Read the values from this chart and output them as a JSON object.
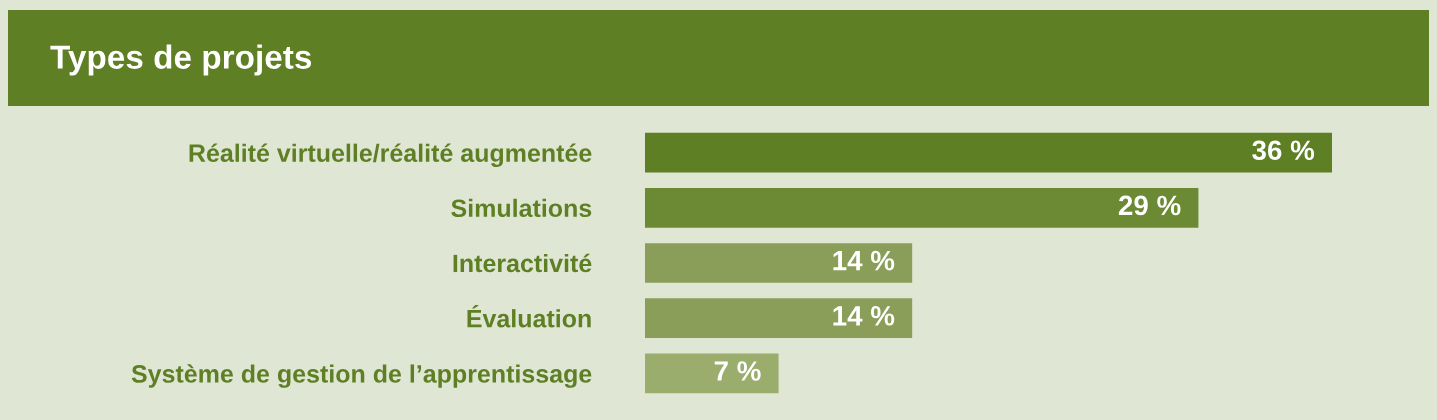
{
  "chart_data": {
    "type": "bar",
    "orientation": "horizontal",
    "title": "Types de projets",
    "categories": [
      "Réalité virtuelle/réalité augmentée",
      "Simulations",
      "Interactivité",
      "Évaluation",
      "Système de gestion de l’apprentissage"
    ],
    "values": [
      36,
      29,
      14,
      14,
      7
    ],
    "colors": [
      "#5e7f24",
      "#6b8a33",
      "#8a9e5a",
      "#8a9e5a",
      "#9aad6c"
    ],
    "value_labels": [
      "36 %",
      "29 %",
      "14 %",
      "14 %",
      "7 %"
    ]
  }
}
